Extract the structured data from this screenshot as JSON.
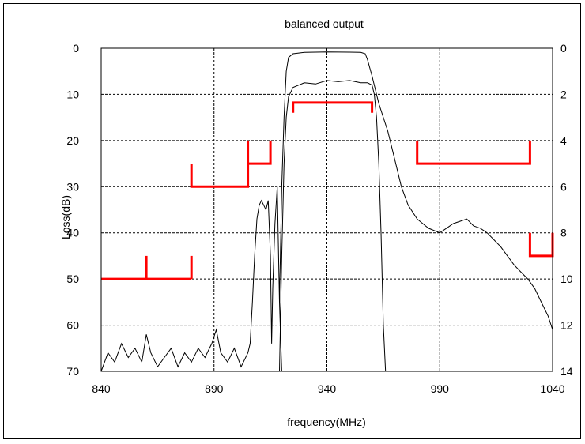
{
  "chart_data": {
    "type": "line",
    "title": "balanced output",
    "xlabel": "frequency(MHz)",
    "ylabel": "Loss(dB)",
    "xlim": [
      840,
      1040
    ],
    "ylim_left": [
      0,
      70
    ],
    "ylim_right": [
      0,
      14
    ],
    "x_ticks": [
      "840",
      "890",
      "940",
      "990",
      "1040"
    ],
    "y_ticks_left": [
      "0",
      "10",
      "20",
      "30",
      "40",
      "50",
      "60",
      "70"
    ],
    "y_ticks_right": [
      "0",
      "2",
      "4",
      "6",
      "8",
      "10",
      "12",
      "14"
    ],
    "y_inverted": true,
    "grid": true,
    "legend": "none",
    "series": [
      {
        "axis": "left",
        "color": "#000000",
        "points": [
          [
            840,
            70
          ],
          [
            843,
            66
          ],
          [
            846,
            68
          ],
          [
            849,
            64
          ],
          [
            852,
            67
          ],
          [
            855,
            65
          ],
          [
            858,
            68
          ],
          [
            860,
            62
          ],
          [
            862,
            66
          ],
          [
            865,
            69
          ],
          [
            868,
            67
          ],
          [
            871,
            65
          ],
          [
            874,
            69
          ],
          [
            877,
            66
          ],
          [
            880,
            68
          ],
          [
            883,
            65
          ],
          [
            886,
            67
          ],
          [
            889,
            64
          ],
          [
            891,
            61
          ],
          [
            893,
            66
          ],
          [
            896,
            68
          ],
          [
            899,
            65
          ],
          [
            902,
            69
          ],
          [
            905,
            66
          ],
          [
            906,
            64
          ],
          [
            907,
            55
          ],
          [
            908,
            45
          ],
          [
            909,
            37
          ],
          [
            910,
            34
          ],
          [
            911,
            33
          ],
          [
            912,
            34
          ],
          [
            913,
            35
          ],
          [
            914,
            33
          ],
          [
            915,
            45
          ],
          [
            915.5,
            64
          ],
          [
            916,
            52
          ],
          [
            917,
            38
          ],
          [
            918,
            30
          ],
          [
            919,
            55
          ],
          [
            920,
            70
          ]
        ]
      },
      {
        "axis": "right",
        "color": "#000000",
        "points": [
          [
            919,
            14
          ],
          [
            920,
            9
          ],
          [
            921,
            5
          ],
          [
            922,
            3
          ],
          [
            923,
            2.1
          ],
          [
            925,
            1.7
          ],
          [
            930,
            1.5
          ],
          [
            935,
            1.55
          ],
          [
            940,
            1.4
          ],
          [
            945,
            1.45
          ],
          [
            950,
            1.4
          ],
          [
            955,
            1.5
          ],
          [
            958,
            1.5
          ],
          [
            960,
            1.6
          ],
          [
            961,
            2
          ],
          [
            962,
            3
          ],
          [
            963,
            5
          ],
          [
            964,
            8
          ],
          [
            965,
            12
          ],
          [
            966,
            14
          ]
        ]
      },
      {
        "axis": "left",
        "color": "#000000",
        "points": [
          [
            919,
            55
          ],
          [
            920,
            30
          ],
          [
            921,
            15
          ],
          [
            922,
            5
          ],
          [
            923,
            2
          ],
          [
            925,
            1.2
          ],
          [
            930,
            0.9
          ],
          [
            940,
            0.8
          ],
          [
            950,
            0.85
          ],
          [
            955,
            0.9
          ],
          [
            957,
            1.2
          ],
          [
            958,
            2.5
          ],
          [
            960,
            6
          ],
          [
            963,
            12
          ],
          [
            967,
            18
          ],
          [
            970,
            24
          ],
          [
            973,
            30
          ],
          [
            976,
            34
          ],
          [
            980,
            37
          ],
          [
            985,
            39
          ],
          [
            990,
            40
          ],
          [
            993,
            39
          ],
          [
            996,
            38
          ],
          [
            999,
            37.5
          ],
          [
            1002,
            37
          ],
          [
            1005,
            38.5
          ],
          [
            1008,
            39
          ],
          [
            1011,
            40
          ],
          [
            1014,
            41.5
          ],
          [
            1017,
            43
          ],
          [
            1020,
            45
          ],
          [
            1023,
            47
          ],
          [
            1026,
            48.5
          ],
          [
            1029,
            50
          ],
          [
            1032,
            52
          ],
          [
            1035,
            55
          ],
          [
            1038,
            58
          ],
          [
            1040,
            61
          ]
        ]
      }
    ],
    "mask_segments": [
      {
        "axis": "left",
        "color": "#ff0000",
        "points": [
          [
            840,
            50
          ],
          [
            880,
            50
          ]
        ]
      },
      {
        "axis": "left",
        "color": "#ff0000",
        "points": [
          [
            860,
            50
          ],
          [
            860,
            45
          ]
        ]
      },
      {
        "axis": "left",
        "color": "#ff0000",
        "points": [
          [
            880,
            50
          ],
          [
            880,
            45
          ]
        ]
      },
      {
        "axis": "left",
        "color": "#ff0000",
        "points": [
          [
            880,
            25
          ],
          [
            880,
            30
          ],
          [
            905,
            30
          ],
          [
            905,
            20
          ]
        ]
      },
      {
        "axis": "left",
        "color": "#ff0000",
        "points": [
          [
            905,
            25
          ],
          [
            915,
            25
          ],
          [
            915,
            20
          ]
        ]
      },
      {
        "axis": "left",
        "color": "#ff0000",
        "points": [
          [
            925,
            14
          ],
          [
            925,
            11.8
          ],
          [
            960,
            11.8
          ],
          [
            960,
            14
          ]
        ]
      },
      {
        "axis": "left",
        "color": "#ff0000",
        "points": [
          [
            980,
            20
          ],
          [
            980,
            25
          ],
          [
            1030,
            25
          ],
          [
            1030,
            20
          ]
        ]
      },
      {
        "axis": "left",
        "color": "#ff0000",
        "points": [
          [
            1030,
            40
          ],
          [
            1030,
            45
          ],
          [
            1040,
            45
          ],
          [
            1040,
            40
          ]
        ]
      }
    ]
  }
}
